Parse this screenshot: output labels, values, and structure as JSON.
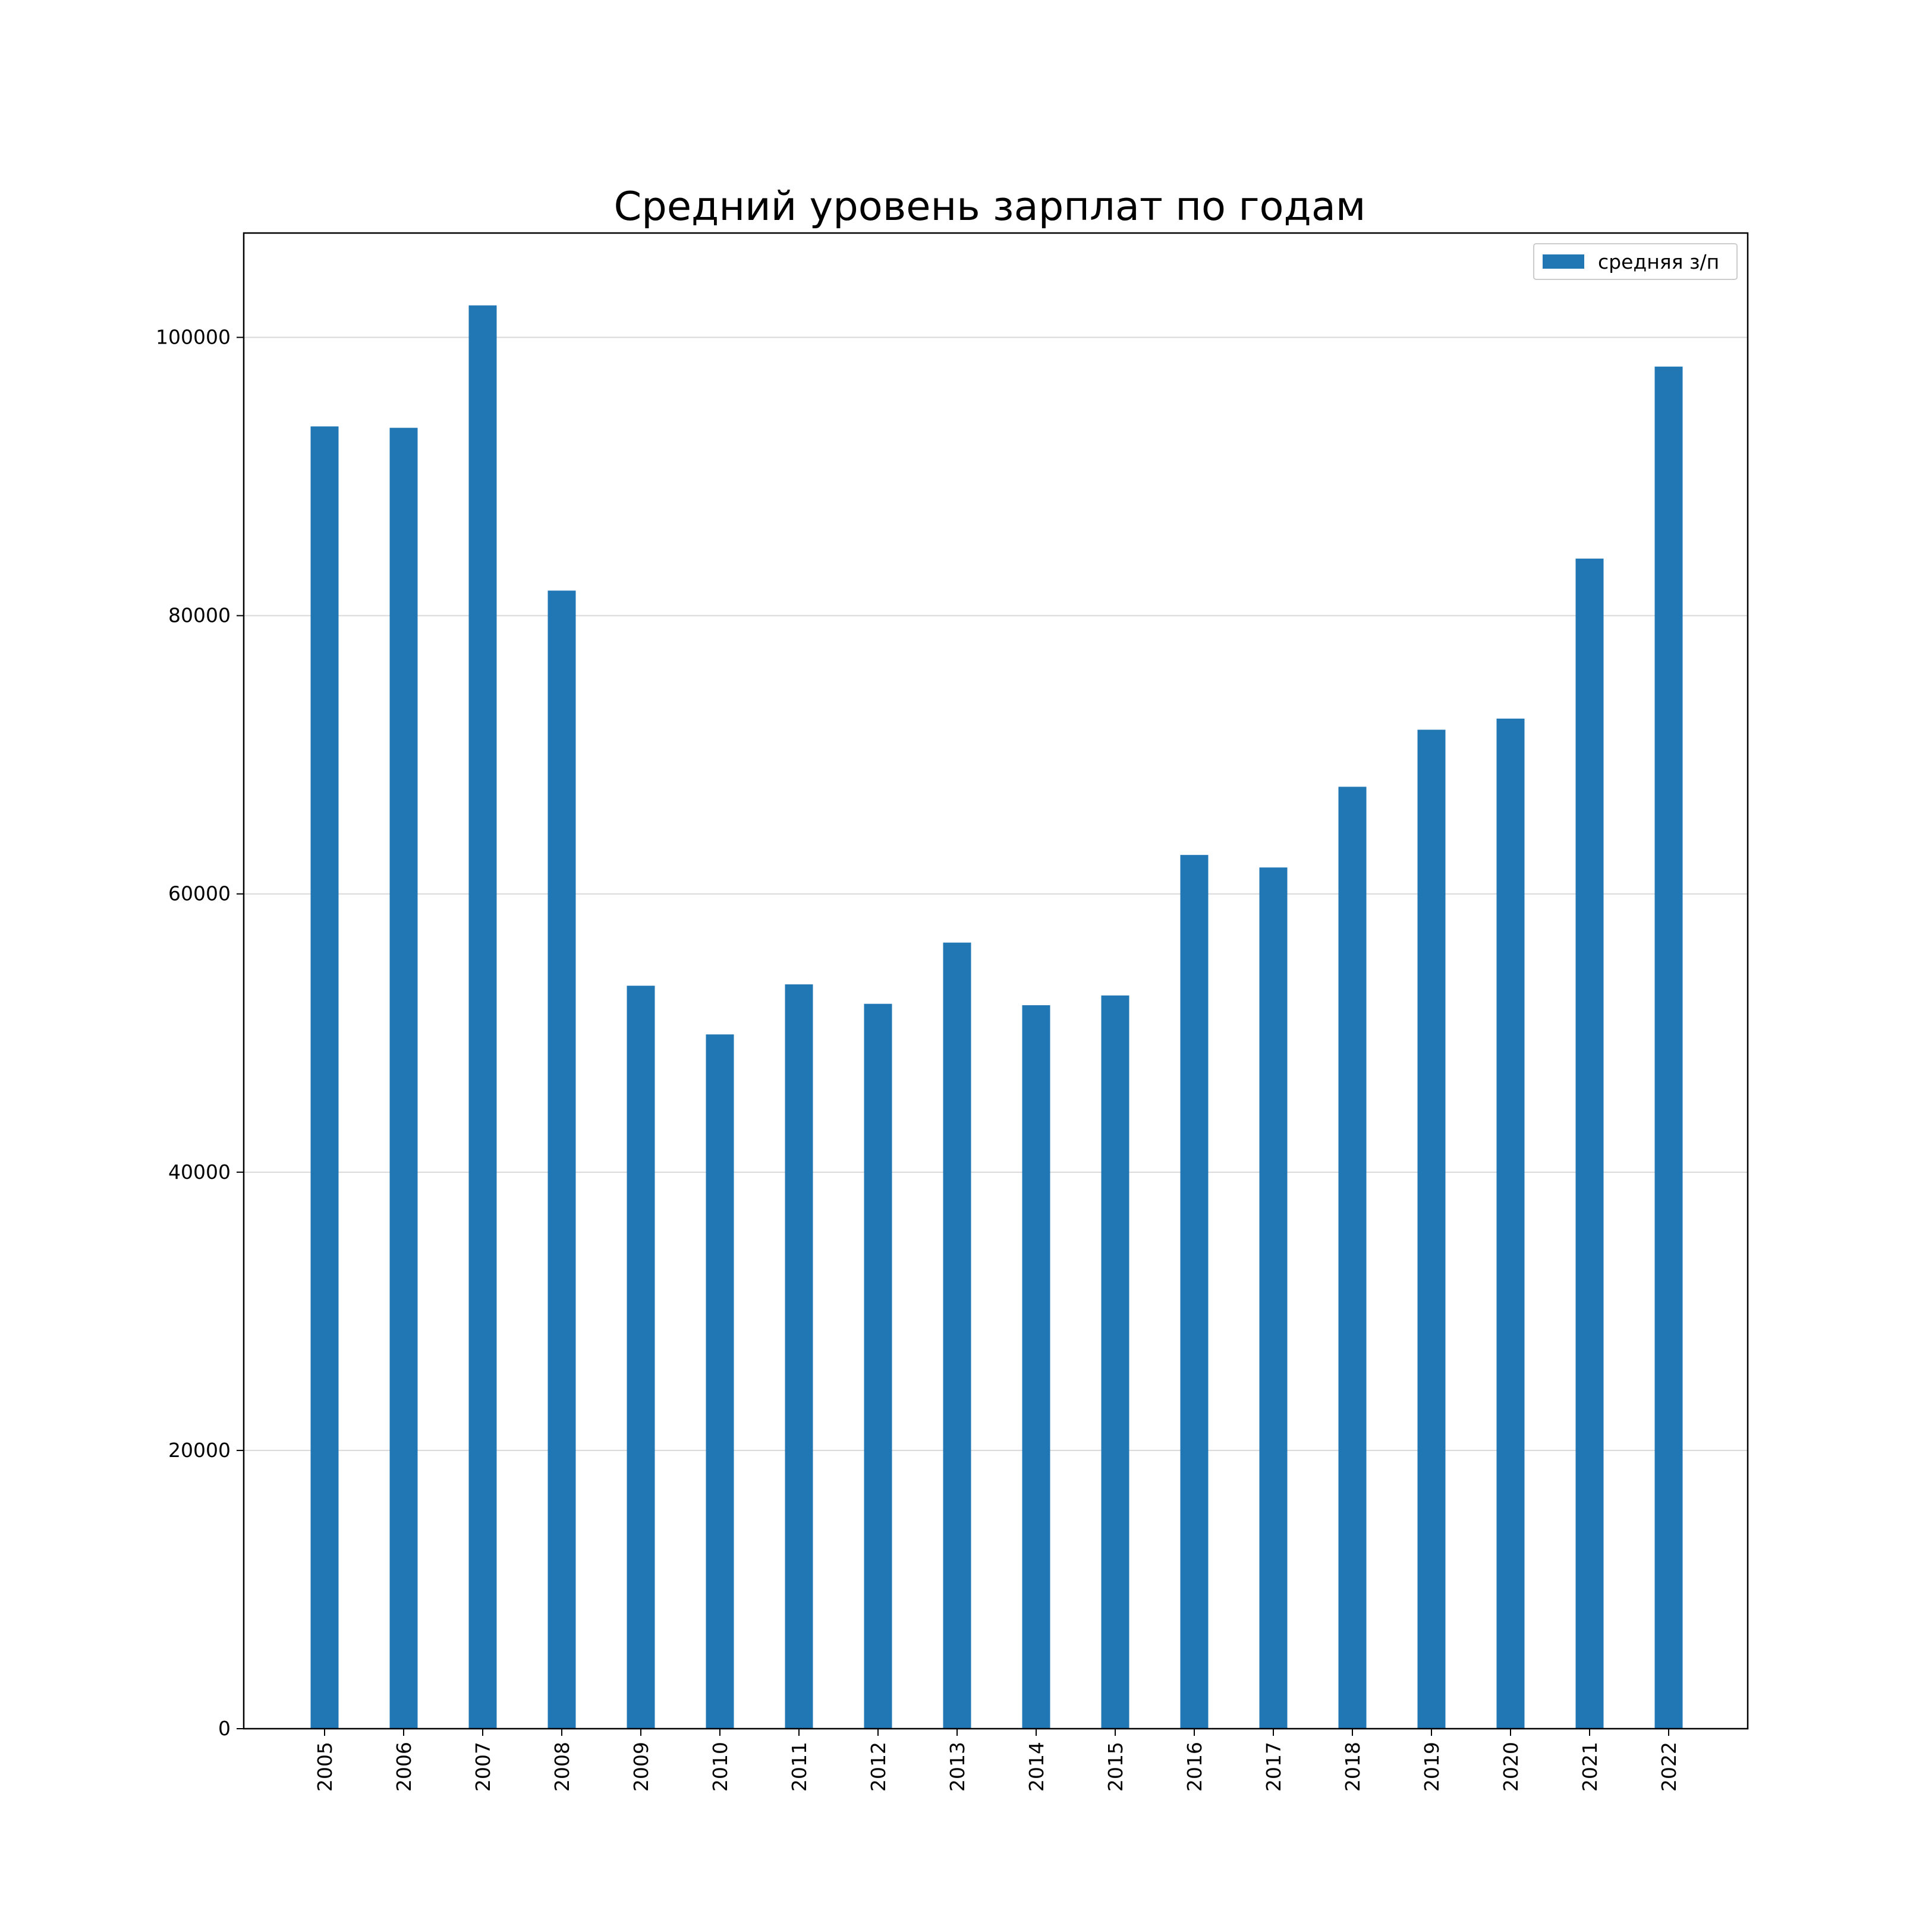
{
  "chart_data": {
    "type": "bar",
    "title": "Средний уровень зарплат по годам",
    "xlabel": "",
    "ylabel": "",
    "categories": [
      "2005",
      "2006",
      "2007",
      "2008",
      "2009",
      "2010",
      "2011",
      "2012",
      "2013",
      "2014",
      "2015",
      "2016",
      "2017",
      "2018",
      "2019",
      "2020",
      "2021",
      "2022"
    ],
    "series": [
      {
        "name": "средняя з/п",
        "values": [
          93600,
          93500,
          102300,
          81800,
          53400,
          49900,
          53500,
          52100,
          56500,
          52000,
          52700,
          62800,
          61900,
          67700,
          71800,
          72600,
          84100,
          97900
        ]
      }
    ],
    "ylim": [
      0,
      107500
    ],
    "yticks": [
      0,
      20000,
      40000,
      60000,
      80000,
      100000
    ],
    "grid": "horizontal",
    "legend_position": "top-right",
    "bar_color": "#2077b4",
    "x_tick_rotation": "vertical"
  }
}
